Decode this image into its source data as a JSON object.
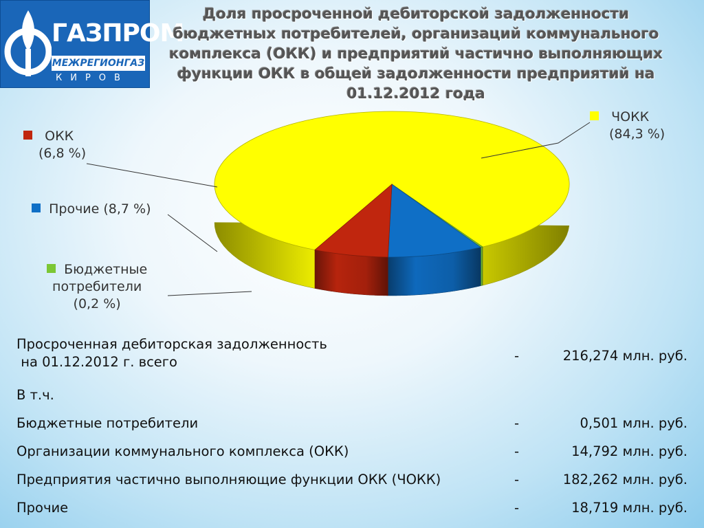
{
  "logo": {
    "brand": "ГАЗПРОМ",
    "sub": "МЕЖРЕГИОНГАЗ",
    "city": "КИРОВ",
    "color": "#1a66b8"
  },
  "chart_data": {
    "type": "pie",
    "title": "Доля просроченной дебиторской задолженности бюджетных потребителей, организаций коммунального комплекса (ОКК) и предприятий частично выполняющих функции ОКК в общей задолженности предприятий на 01.12.2012 года",
    "legend_position": "around",
    "slices": [
      {
        "name": "ЧОКК",
        "value": 84.3,
        "label": "(84,3 %)",
        "color": "#ffff00"
      },
      {
        "name": "ОКК",
        "value": 6.8,
        "label": "(6,8 %)",
        "color": "#c0260e"
      },
      {
        "name": "Прочие",
        "value": 8.7,
        "label": "(8,7 %)",
        "color": "#0f6fc6"
      },
      {
        "name": "Бюджетные потребители",
        "value": 0.2,
        "label": "(0,2 %)",
        "color": "#7cc734"
      }
    ]
  },
  "labels": {
    "chokk": {
      "line1": "ЧОКК",
      "line2": "(84,3 %)"
    },
    "okk": {
      "line1": "ОКК",
      "line2": "(6,8 %)"
    },
    "other": {
      "line1": "Прочие (8,7 %)"
    },
    "budget": {
      "line1": "Бюджетные",
      "line2": "потребители",
      "line3": "(0,2 %)"
    }
  },
  "table": {
    "total": {
      "line1": "Просроченная дебиторская задолженность",
      "line2": " на 01.12.2012 г. всего",
      "dash": "-",
      "value": "216,274 млн. руб."
    },
    "incl": "В т.ч.",
    "rows": [
      {
        "name": "Бюджетные потребители",
        "dash": "-",
        "value": "0,501 млн. руб."
      },
      {
        "name": "Организации коммунального комплекса (ОКК)",
        "dash": "-",
        "value": "14,792 млн. руб."
      },
      {
        "name": "Предприятия частично выполняющие функции ОКК (ЧОКК)",
        "dash": "-",
        "value": "182,262 млн. руб."
      },
      {
        "name": "Прочие",
        "dash": "-",
        "value": "18,719 млн. руб."
      }
    ]
  }
}
